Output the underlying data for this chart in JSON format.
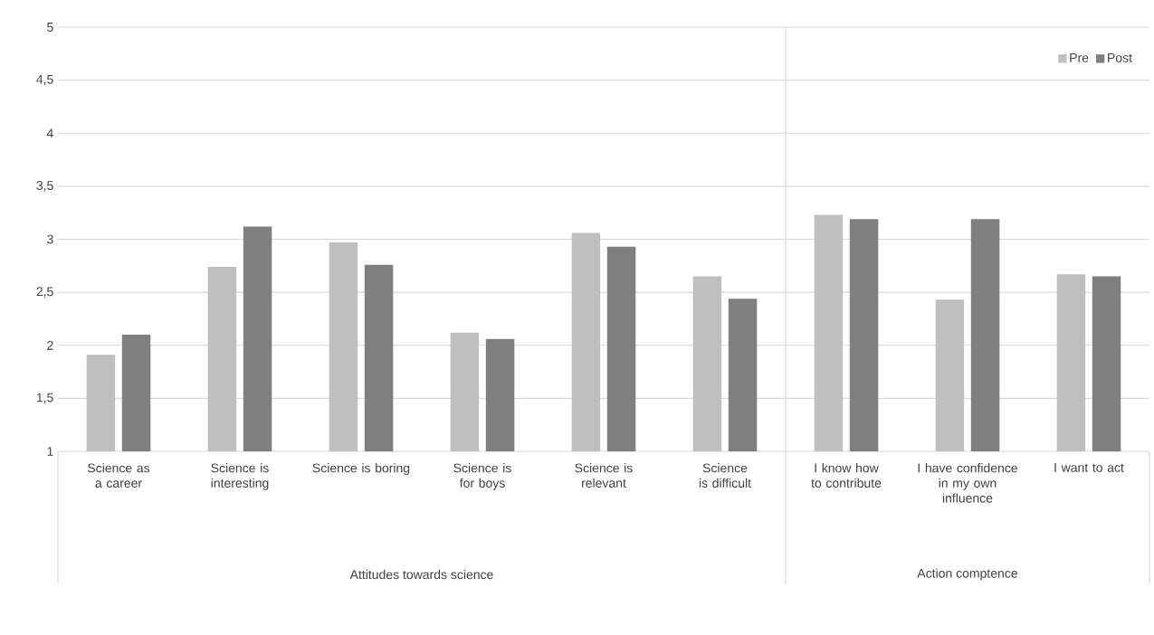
{
  "chart_data": {
    "type": "bar",
    "categories": [
      "Science as a career",
      "Science is interesting",
      "Science is boring",
      "Science is for boys",
      "Science is relevant",
      "Science is difficult",
      "I know how to contribute",
      "I have confidence in my own influence",
      "I want to act"
    ],
    "series": [
      {
        "name": "Pre",
        "color": "#bfbfbf",
        "values": [
          1.91,
          2.74,
          2.97,
          2.12,
          3.06,
          2.65,
          3.23,
          2.43,
          2.67
        ]
      },
      {
        "name": "Post",
        "color": "#7f7f7f",
        "values": [
          2.1,
          3.12,
          2.76,
          2.06,
          2.93,
          2.44,
          3.19,
          3.19,
          2.65
        ]
      }
    ],
    "ylim": [
      1,
      5
    ],
    "yticks": [
      1,
      {
        "value": 1.5,
        "label": "1,5"
      },
      2,
      {
        "value": 2.5,
        "label": "2,5"
      },
      3,
      {
        "value": 3.5,
        "label": "3,5"
      },
      4,
      {
        "value": 4.5,
        "label": "4,5"
      },
      5
    ],
    "grid": "y",
    "legend": "top right",
    "annotations": [
      "Attitudes towards science",
      "Action comptence"
    ]
  }
}
